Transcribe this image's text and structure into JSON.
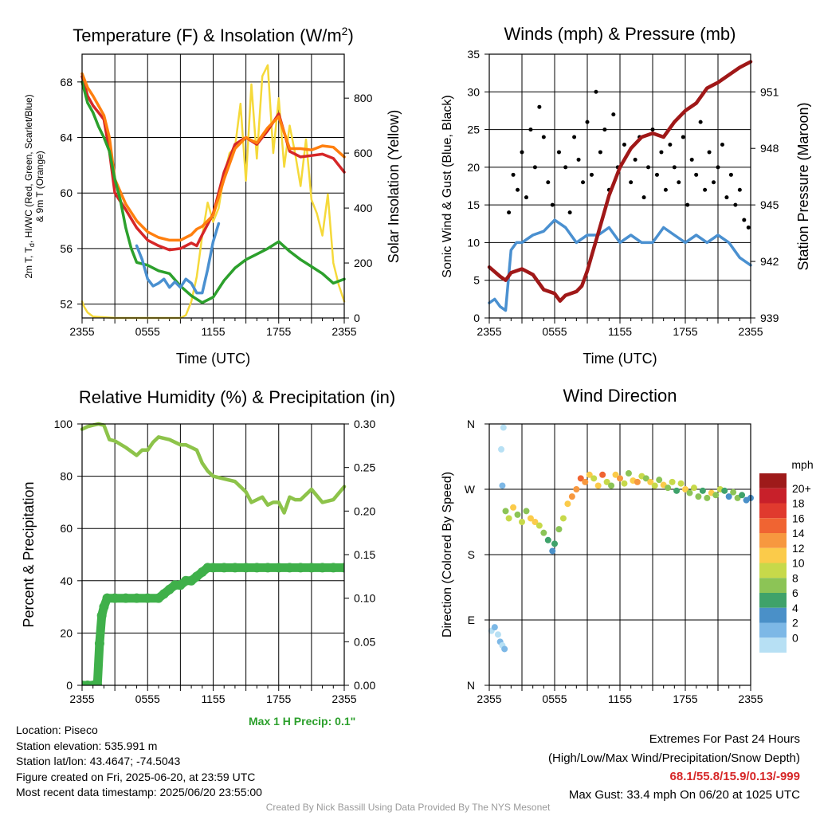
{
  "chart_data": [
    {
      "type": "line",
      "title": "Temperature (F) & Insolation (W/m²)",
      "xlabel": "Time (UTC)",
      "ylabel": "2m T, Td, HI/WC (Red, Green, Scarlet/Blue) & 9m T (Orange)",
      "ylabel_parts": {
        "line1_a": "2m T, T",
        "line1_sub": "d",
        "line1_b": ", HI/WC (Red, Green, Scarlet/Blue)",
        "line2": "& 9m T (Orange)"
      },
      "y2label": "Solar Insolation (Yellow)",
      "x_ticks": [
        "2355",
        "0555",
        "1155",
        "1755",
        "2355"
      ],
      "y_ticks": [
        52,
        56,
        60,
        64,
        68
      ],
      "y2_ticks": [
        0,
        200,
        400,
        600,
        800
      ],
      "ylim": [
        51,
        70
      ],
      "y2lim": [
        0,
        960
      ],
      "xlim_hours": [
        0,
        24
      ],
      "series": [
        {
          "color": "#d62728",
          "x": [
            0,
            0.5,
            1,
            1.5,
            2,
            2.5,
            3,
            4,
            5,
            6,
            7,
            8,
            9,
            10,
            10.5,
            11,
            12,
            13,
            14,
            15,
            16,
            17,
            18,
            19,
            20,
            21,
            22,
            23,
            24
          ],
          "y": [
            68.4,
            67,
            66.3,
            65.8,
            65.3,
            63,
            60,
            58.8,
            57.5,
            56.6,
            56.2,
            55.9,
            56,
            56.4,
            56.2,
            57,
            58.5,
            61.5,
            63.5,
            64,
            63.5,
            64.5,
            65.7,
            63,
            62.6,
            62.7,
            62.8,
            62.5,
            61.5
          ]
        },
        {
          "color": "#ff7f0e",
          "x": [
            0,
            0.5,
            1,
            1.5,
            2,
            2.5,
            3,
            4,
            5,
            6,
            7,
            8,
            9,
            10,
            10.5,
            11,
            12,
            13,
            14,
            15,
            16,
            17,
            18,
            19,
            20,
            21,
            22,
            23,
            24
          ],
          "y": [
            68.6,
            67.6,
            67,
            66.3,
            65.6,
            64,
            61,
            59.2,
            58,
            57.2,
            56.8,
            56.6,
            56.6,
            57,
            57.4,
            57.6,
            58.4,
            61,
            63.2,
            64,
            63.6,
            64.7,
            65.5,
            63.2,
            63.2,
            63.1,
            63.4,
            63.3,
            62.6
          ]
        },
        {
          "color": "#2ca02c",
          "x": [
            0,
            0.5,
            1,
            1.5,
            2,
            2.5,
            3,
            3.5,
            4,
            4.5,
            5,
            6,
            7,
            8,
            9,
            10,
            11,
            12,
            13,
            14,
            15,
            16,
            17,
            18,
            19,
            20,
            21,
            22,
            23,
            24
          ],
          "y": [
            68,
            66.5,
            65.8,
            64.8,
            64,
            63,
            61,
            59.5,
            57.5,
            56,
            55,
            54.8,
            54.4,
            54.2,
            53.3,
            52.6,
            52.1,
            52.5,
            53.7,
            54.6,
            55.2,
            55.6,
            56,
            56.5,
            55.8,
            55.2,
            54.7,
            54.2,
            53.5,
            53.8
          ]
        },
        {
          "color": "#4a90d0",
          "x": [
            5,
            5.5,
            6,
            6.5,
            7,
            7.5,
            8,
            8.5,
            9,
            9.5,
            10,
            10.5,
            11,
            11.5,
            12,
            12.5
          ],
          "y": [
            56.2,
            55.2,
            53.8,
            53.3,
            53.5,
            53.8,
            53.2,
            53.6,
            53.2,
            53.8,
            53.5,
            52.8,
            52.8,
            54.5,
            56.5,
            57.8
          ]
        }
      ],
      "insolation": {
        "color": "#f5d93a",
        "x": [
          0,
          0.2,
          0.5,
          1,
          3,
          5,
          7,
          9,
          9.5,
          10,
          10.5,
          11,
          11.5,
          12,
          12.5,
          13,
          13.5,
          14,
          14.5,
          15,
          15.5,
          16,
          16.5,
          17,
          17.5,
          18,
          18.5,
          19,
          19.5,
          20,
          20.5,
          21,
          21.5,
          22,
          22.5,
          23,
          23.5,
          24
        ],
        "y": [
          60,
          40,
          20,
          5,
          0,
          0,
          0,
          0,
          10,
          60,
          150,
          300,
          420,
          350,
          400,
          520,
          600,
          620,
          780,
          500,
          850,
          580,
          880,
          920,
          600,
          800,
          550,
          700,
          600,
          480,
          650,
          430,
          380,
          300,
          450,
          200,
          120,
          60
        ]
      }
    },
    {
      "type": "line",
      "title": "Winds (mph) & Pressure (mb)",
      "xlabel": "Time (UTC)",
      "ylabel": "Sonic Wind & Gust (Blue, Black)",
      "y2label": "Station Pressure (Maroon)",
      "x_ticks": [
        "2355",
        "0555",
        "1155",
        "1755",
        "2355"
      ],
      "y_ticks": [
        0,
        5,
        10,
        15,
        20,
        25,
        30,
        35
      ],
      "y2_ticks": [
        939,
        942,
        945,
        948,
        951
      ],
      "ylim": [
        0,
        35
      ],
      "y2lim": [
        939,
        953
      ],
      "xlim_hours": [
        0,
        24
      ],
      "pressure": {
        "color": "#a01818",
        "x": [
          0,
          1,
          1.5,
          2,
          3,
          4,
          5,
          6,
          6.5,
          7,
          8,
          8.5,
          9,
          9.5,
          10,
          11,
          12,
          13,
          14,
          15,
          16,
          17,
          18,
          19,
          20,
          21,
          22,
          23,
          24
        ],
        "y": [
          941.7,
          941.2,
          941,
          941.4,
          941.6,
          941.3,
          940.5,
          940.3,
          939.9,
          940.2,
          940.4,
          940.7,
          941.5,
          942.5,
          943.5,
          945.5,
          947,
          948,
          948.6,
          948.8,
          948.6,
          949.4,
          950,
          950.4,
          951.2,
          951.5,
          951.9,
          952.3,
          952.6
        ]
      },
      "wind": {
        "color": "#4a90d0",
        "x": [
          0,
          0.5,
          1,
          1.5,
          2,
          2.5,
          3,
          4,
          5,
          6,
          7,
          8,
          9,
          10,
          11,
          12,
          13,
          14,
          15,
          16,
          17,
          18,
          19,
          20,
          21,
          22,
          23,
          24
        ],
        "y": [
          2,
          2.5,
          1.5,
          1,
          9,
          10,
          10,
          11,
          11.5,
          13,
          12,
          10,
          11,
          11,
          12,
          10,
          11,
          10,
          10,
          12,
          11,
          10,
          11,
          10,
          11,
          10,
          8,
          7
        ]
      },
      "gust": {
        "color": "#000000",
        "x": [
          1.8,
          2.2,
          2.6,
          3,
          3.4,
          3.8,
          4.2,
          4.6,
          5,
          5.4,
          5.8,
          6.4,
          7,
          7.4,
          7.8,
          8.2,
          8.6,
          9,
          9.4,
          9.8,
          10.2,
          10.6,
          11,
          11.4,
          11.8,
          12.4,
          13,
          13.4,
          13.8,
          14.2,
          14.6,
          15,
          15.4,
          15.8,
          16.2,
          16.6,
          17,
          17.4,
          17.8,
          18.2,
          18.6,
          19,
          19.4,
          19.8,
          20.2,
          20.6,
          21,
          21.4,
          21.8,
          22.2,
          22.6,
          23,
          23.4,
          23.8
        ],
        "y": [
          14,
          19,
          17,
          22,
          16,
          25,
          20,
          28,
          24,
          18,
          15,
          22,
          20,
          14,
          24,
          21,
          18,
          26,
          19,
          30,
          22,
          25,
          17,
          27,
          20,
          23,
          18,
          21,
          24,
          16,
          20,
          25,
          19,
          22,
          17,
          23,
          20,
          18,
          24,
          15,
          21,
          19,
          26,
          17,
          22,
          18,
          20,
          23,
          16,
          19,
          15,
          17,
          13,
          12
        ]
      }
    },
    {
      "type": "line",
      "title": "Relative Humidity (%) & Precipitation (in)",
      "ylabel": "Percent & Precipitation",
      "x_ticks": [
        "2355",
        "0555",
        "1155",
        "1755",
        "2355"
      ],
      "y_ticks": [
        0,
        20,
        40,
        60,
        80,
        100
      ],
      "y2_ticks": [
        "0.00",
        "0.05",
        "0.10",
        "0.15",
        "0.20",
        "0.25",
        "0.30"
      ],
      "ylim": [
        0,
        100
      ],
      "y2lim": [
        0,
        0.3
      ],
      "xlim_hours": [
        0,
        24
      ],
      "rh": {
        "color": "#8dc34a",
        "x": [
          0,
          0.5,
          1,
          1.5,
          2,
          2.5,
          3,
          4,
          5,
          5.5,
          6,
          6.5,
          7,
          8,
          9,
          9.5,
          10,
          10.5,
          11,
          11.5,
          12,
          13,
          14,
          15,
          15.5,
          16,
          16.5,
          17,
          17.5,
          18,
          18.5,
          19,
          19.5,
          20,
          21,
          22,
          23,
          24
        ],
        "y": [
          98,
          99,
          99.5,
          100,
          99.5,
          94,
          93.5,
          91,
          88,
          90,
          90,
          93,
          95,
          94,
          92,
          92,
          91,
          90,
          85,
          82,
          80,
          79,
          78,
          74,
          70,
          71,
          72,
          69,
          70,
          70,
          66,
          72,
          71,
          71,
          75,
          70,
          71,
          76
        ]
      },
      "precip": {
        "color": "#3fb04a",
        "x": [
          0,
          0.5,
          1,
          1.4,
          1.6,
          1.8,
          2,
          2.3,
          3,
          4,
          5,
          6,
          7,
          7.5,
          8,
          8.5,
          9,
          9.5,
          10,
          10.5,
          11,
          11.5,
          12,
          13,
          14,
          15,
          16,
          17,
          18,
          19,
          20,
          21,
          22,
          23,
          24
        ],
        "y": [
          0,
          0,
          0,
          0,
          0.048,
          0.08,
          0.09,
          0.1,
          0.1,
          0.1,
          0.1,
          0.1,
          0.1,
          0.105,
          0.11,
          0.115,
          0.115,
          0.12,
          0.12,
          0.125,
          0.13,
          0.135,
          0.135,
          0.135,
          0.135,
          0.135,
          0.135,
          0.135,
          0.135,
          0.135,
          0.135,
          0.135,
          0.135,
          0.135,
          0.135
        ]
      },
      "max_precip_label": "Max 1 H Precip: 0.1\""
    },
    {
      "type": "scatter",
      "title": "Wind Direction",
      "ylabel": "Direction (Colored By Speed)",
      "x_ticks": [
        "2355",
        "0555",
        "1155",
        "1755",
        "2355"
      ],
      "y_ticks": [
        "N",
        "E",
        "S",
        "W",
        "N"
      ],
      "ylim": [
        0,
        360
      ],
      "xlim_hours": [
        0,
        24
      ],
      "legend_title": "mph",
      "legend_labels": [
        "20+",
        "18",
        "16",
        "14",
        "12",
        "10",
        "8",
        "6",
        "4",
        "2",
        "0"
      ],
      "legend_colors": [
        "#9e1a1a",
        "#c8202a",
        "#e03a2e",
        "#f06432",
        "#f7983f",
        "#fbcb4a",
        "#c7d94a",
        "#8cc456",
        "#3fa26a",
        "#4a90c8",
        "#7db8e6",
        "#b7e0f4"
      ],
      "points": {
        "x": [
          0.2,
          0.5,
          0.8,
          1,
          1.2,
          1.4,
          1.3,
          1.1,
          1.2,
          1.5,
          1.8,
          2.2,
          2.6,
          3,
          3.4,
          3.8,
          4.2,
          4.6,
          5,
          5.4,
          5.8,
          6,
          6.4,
          6.8,
          7.2,
          7.6,
          8,
          8.4,
          8.8,
          9.2,
          9.6,
          10,
          10.4,
          10.8,
          11.2,
          11.6,
          12,
          12.4,
          12.8,
          13.2,
          13.6,
          14,
          14.4,
          14.8,
          15.2,
          15.6,
          16,
          16.4,
          16.8,
          17.2,
          17.6,
          18,
          18.4,
          18.8,
          19.2,
          19.6,
          20,
          20.4,
          20.8,
          21.2,
          21.6,
          22,
          22.4,
          22.8,
          23.2,
          23.6,
          24
        ],
        "y": [
          75,
          80,
          70,
          60,
          55,
          50,
          355,
          325,
          275,
          240,
          230,
          245,
          235,
          225,
          240,
          230,
          225,
          220,
          210,
          200,
          185,
          195,
          215,
          230,
          250,
          260,
          270,
          285,
          280,
          290,
          285,
          275,
          290,
          280,
          275,
          290,
          285,
          278,
          292,
          282,
          280,
          288,
          285,
          280,
          275,
          283,
          276,
          272,
          280,
          268,
          278,
          270,
          265,
          272,
          260,
          268,
          258,
          265,
          262,
          270,
          268,
          260,
          266,
          258,
          262,
          255,
          258
        ],
        "speed": [
          1,
          2,
          1,
          2,
          1,
          2,
          1,
          1,
          2,
          8,
          10,
          12,
          9,
          11,
          8,
          13,
          12,
          10,
          9,
          7,
          5,
          6,
          8,
          10,
          12,
          14,
          15,
          17,
          14,
          12,
          10,
          13,
          16,
          11,
          9,
          12,
          14,
          10,
          8,
          12,
          15,
          11,
          9,
          13,
          10,
          8,
          12,
          9,
          11,
          7,
          10,
          13,
          9,
          11,
          8,
          6,
          9,
          12,
          8,
          10,
          7,
          5,
          8,
          9,
          6,
          5,
          4
        ]
      }
    }
  ],
  "info": {
    "location": "Location: Piseco",
    "elevation": "Station elevation: 535.991 m",
    "latlon": "Station lat/lon: 43.4647; -74.5043",
    "created": "Figure created on Fri, 2025-06-20, at 23:59 UTC",
    "recent": "Most recent data timestamp: 2025/06/20 23:55:00"
  },
  "extremes": {
    "line1": "Extremes For Past 24 Hours",
    "line2": "(High/Low/Max Wind/Precipitation/Snow Depth)",
    "values": "68.1/55.8/15.9/0.13/-999",
    "gust": "Max Gust: 33.4 mph On 06/20 at 1025 UTC",
    "values_color": "#d62728"
  },
  "credit": "Created By Nick Bassill Using Data Provided By The NYS Mesonet"
}
